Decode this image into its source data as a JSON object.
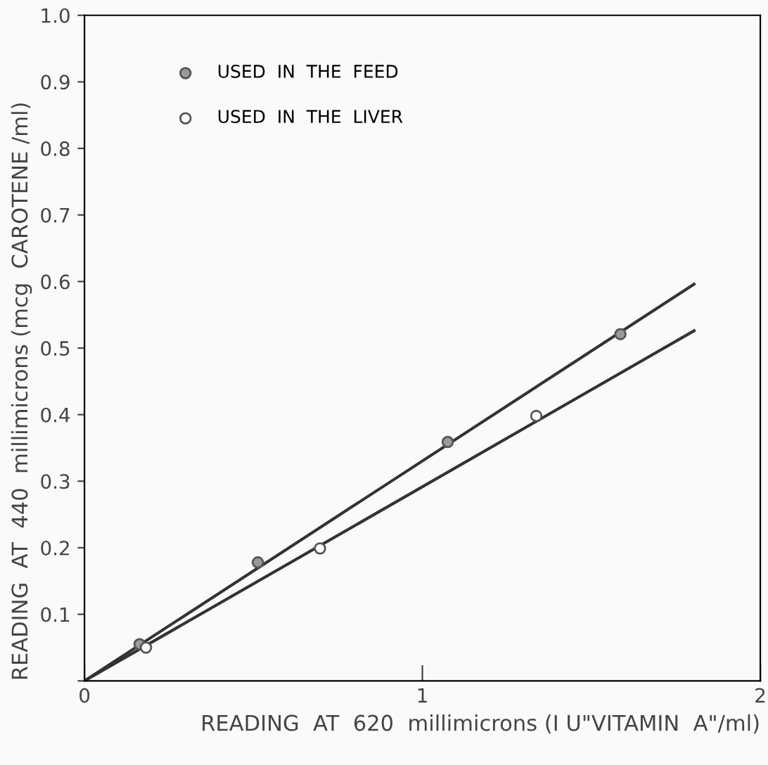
{
  "chart_data": {
    "type": "scatter",
    "xlabel": "READING  AT  620  millimicrons (I U\"VITAMIN  A\"/ml)",
    "ylabel": "READING  AT  440  millimicrons (mcg  CAROTENE /ml)",
    "series": [
      {
        "name": "USED  IN  THE  FEED",
        "color": "#999999",
        "marker": "circle",
        "x": [
          0.163,
          0.513,
          1.075,
          1.586
        ],
        "values": [
          0.055,
          0.178,
          0.359,
          0.521
        ]
      },
      {
        "name": "USED  IN  THE  LIVER",
        "color": "#ffffff",
        "marker": "circle",
        "x": [
          0.182,
          0.697,
          1.337
        ],
        "values": [
          0.05,
          0.199,
          0.398
        ]
      },
      {
        "type": "line",
        "color": "#333333",
        "marker": "none",
        "x": [
          0,
          1.804
        ],
        "values": [
          0,
          0.596
        ]
      },
      {
        "type": "line",
        "color": "#333333",
        "marker": "none",
        "x": [
          0,
          1.804
        ],
        "values": [
          0,
          0.526
        ]
      }
    ],
    "xlim": [
      0,
      2
    ],
    "ylim": [
      0,
      1.0
    ],
    "xticks": [
      0,
      1,
      2
    ],
    "yticks": [
      {
        "value": 0,
        "label": null
      },
      0.1,
      0.2,
      0.3,
      0.4,
      0.5,
      0.6,
      0.7,
      0.8,
      0.9,
      {
        "value": 1.0,
        "label": "1.0"
      }
    ],
    "grid": false,
    "legend": "top left"
  }
}
